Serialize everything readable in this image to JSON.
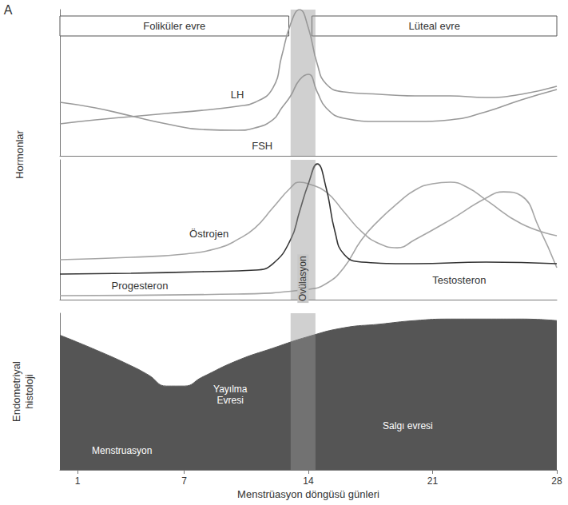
{
  "chart_data": {
    "type": "line",
    "title": "A",
    "y_label": "Hormonlar",
    "x_label": "Menstrüasyon döngüsü günleri",
    "xlim": [
      0,
      28
    ],
    "xticks": [
      1,
      7,
      14,
      21,
      28
    ],
    "tick_labels": "x",
    "grid": false,
    "annotations": {
      "phases": [
        {
          "label": "Foliküler evre",
          "x": [
            0,
            12.9
          ]
        },
        {
          "label": "Lüteal evre",
          "x": [
            14.2,
            28
          ]
        }
      ],
      "ovulation": {
        "label": "Ovülasyon",
        "x": [
          13,
          14.4
        ]
      }
    },
    "panels": [
      {
        "type": "line",
        "ylim": [
          0,
          100
        ],
        "series": [
          {
            "name": "LH",
            "color": "#999999",
            "x": [
              0,
              2,
              4,
              6,
              8,
              10,
              11,
              12,
              12.5,
              13,
              13.5,
              14,
              14.5,
              15,
              16,
              18,
              20,
              22,
              24,
              26,
              28
            ],
            "values": [
              21.9,
              24.6,
              26.8,
              29,
              31.1,
              33.9,
              36.6,
              46.4,
              68.3,
              90.2,
              100,
              87.4,
              62.8,
              49.2,
              43.7,
              42.1,
              41,
              41,
              39.9,
              42.1,
              47.5
            ]
          },
          {
            "name": "FSH",
            "color": "#999999",
            "x": [
              0,
              2,
              4,
              6,
              8,
              10,
              11,
              12,
              12.5,
              13,
              13.5,
              14,
              14.5,
              15,
              16,
              18,
              20,
              22,
              24,
              26,
              28
            ],
            "values": [
              36.6,
              32.8,
              27.3,
              21.9,
              18,
              17.5,
              19.1,
              24.6,
              32.8,
              41,
              51.9,
              55.7,
              43.7,
              32.8,
              25.7,
              23.5,
              23.5,
              24.6,
              30.1,
              38.3,
              45.4
            ]
          }
        ]
      },
      {
        "type": "line",
        "ylim": [
          0,
          100
        ],
        "series": [
          {
            "name": "Östrojen",
            "color": "#a6a6a6",
            "x": [
              0,
              4,
              7,
              9,
              10,
              11,
              12,
              13,
              13.5,
              14,
              15,
              16,
              17,
              18,
              19,
              20,
              22,
              24,
              25,
              26,
              27,
              28
            ],
            "values": [
              28.6,
              30.3,
              32.6,
              37.1,
              42.9,
              51.4,
              65.7,
              80,
              84,
              82.9,
              77.1,
              62.9,
              48.6,
              40,
              37.1,
              42.9,
              57.1,
              72.6,
              77.1,
              74.3,
              51.4,
              22.9
            ]
          },
          {
            "name": "Progesteron",
            "color": "#a6a6a6",
            "x": [
              0,
              10,
              14,
              15,
              16,
              17,
              18,
              19,
              20,
              21,
              22,
              23,
              24,
              26,
              28
            ],
            "values": [
              2.9,
              4,
              7.4,
              11.4,
              22.9,
              42.9,
              57.1,
              68.6,
              78.3,
              82.9,
              84,
              80,
              71.4,
              54.3,
              45.7
            ]
          },
          {
            "name": "Testosteron",
            "color": "#333333",
            "x": [
              0,
              4,
              8,
              11,
              12,
              13,
              13.5,
              14,
              14.5,
              15,
              15.5,
              16,
              17,
              20,
              24,
              28
            ],
            "values": [
              18.3,
              18.9,
              20,
              21.1,
              25.7,
              42.9,
              62.9,
              82.9,
              97.1,
              80,
              48.6,
              32.6,
              26.9,
              25.7,
              26.9,
              25.7
            ]
          }
        ]
      },
      {
        "type": "area",
        "y_label": "Endometriyal histoloji",
        "ylim": [
          0,
          100
        ],
        "annotations": [
          "Menstruasyon",
          "Yayılma Evresi",
          "Salgı evresi"
        ],
        "series": [
          {
            "color": "#555555",
            "x": [
              0,
              2,
              4,
              5,
              6,
              7,
              8,
              10,
              12,
              14,
              16,
              18,
              20,
              22,
              24,
              26,
              28
            ],
            "values": [
              86,
              76.7,
              66.5,
              60.5,
              53.5,
              53.5,
              59.1,
              69.8,
              77.7,
              85.1,
              90.7,
              93,
              95.3,
              96.3,
              96.3,
              96.3,
              95.3
            ]
          }
        ]
      }
    ]
  }
}
